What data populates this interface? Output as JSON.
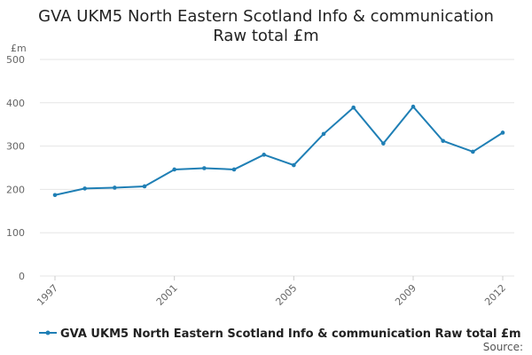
{
  "chart_data": {
    "type": "line",
    "title_line1": "GVA UKM5 North Eastern Scotland Info & communication",
    "title_line2": "Raw total £m",
    "ylabel": "£m",
    "xlabel": "",
    "ylim": [
      0,
      500
    ],
    "yticks": [
      0,
      100,
      200,
      300,
      400,
      500
    ],
    "xlim": [
      1997,
      2012
    ],
    "xticks": [
      1997,
      2001,
      2005,
      2009,
      2012
    ],
    "grid": true,
    "legend_position": "bottom",
    "series": [
      {
        "name": "GVA UKM5 North Eastern Scotland Info & communication Raw total £m",
        "color": "#1f7fb5",
        "x": [
          1997,
          1998,
          1999,
          2000,
          2001,
          2002,
          2003,
          2004,
          2005,
          2006,
          2007,
          2008,
          2009,
          2010,
          2011,
          2012
        ],
        "values": [
          187,
          202,
          204,
          207,
          246,
          249,
          246,
          280,
          256,
          328,
          389,
          306,
          391,
          312,
          287,
          331
        ]
      }
    ],
    "source_label": "Source:"
  }
}
